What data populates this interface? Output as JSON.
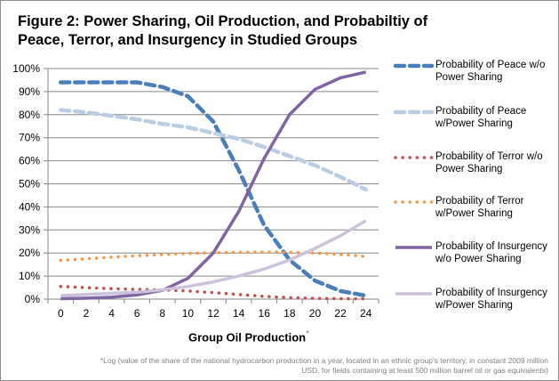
{
  "chart_data": {
    "type": "line",
    "title": "Figure 2: Power Sharing, Oil Production, and Probabiltiy of Peace, Terror, and Insurgency in Studied Groups",
    "title_lines": [
      "Figure 2: Power Sharing, Oil Production, and Probabiltiy of",
      "Peace, Terror, and Insurgency in Studied Groups"
    ],
    "xlabel": "Group Oil Production",
    "xlabel_marker": "*",
    "ylabel": "",
    "x": [
      0,
      2,
      4,
      6,
      8,
      10,
      12,
      14,
      16,
      18,
      20,
      22,
      24
    ],
    "x_tick_labels": [
      "0",
      "2",
      "4",
      "6",
      "8",
      "10",
      "12",
      "14",
      "16",
      "18",
      "20",
      "22",
      "24"
    ],
    "ylim": [
      0,
      100
    ],
    "y_tick_labels": [
      "0%",
      "10%",
      "20%",
      "30%",
      "40%",
      "50%",
      "60%",
      "70%",
      "80%",
      "90%",
      "100%"
    ],
    "grid": "horizontal",
    "legend_position": "right",
    "series": [
      {
        "name": "Probability of Peace w/o Power Sharing",
        "label_lines": [
          "Probability of Peace w/o",
          "Power Sharing"
        ],
        "color": "#4a7ebb",
        "style": "dash",
        "values": [
          94,
          94,
          94,
          94,
          92,
          88,
          77,
          56,
          32,
          17,
          8,
          3.5,
          1.5
        ]
      },
      {
        "name": "Probability of Peace w/Power Sharing",
        "label_lines": [
          "Probability of Peace",
          "w/Power Sharing"
        ],
        "color": "#b9cde5",
        "style": "dash",
        "values": [
          82,
          81,
          79.5,
          78,
          76,
          74.5,
          72,
          69.5,
          66,
          62,
          58,
          53,
          47.5
        ]
      },
      {
        "name": "Probability of Terror w/o Power Sharing",
        "label_lines": [
          "Probability of Terror w/o",
          "Power Sharing"
        ],
        "color": "#c0504d",
        "style": "dot",
        "values": [
          5.5,
          5,
          4.5,
          4.2,
          4,
          3.5,
          2.8,
          2,
          1.2,
          0.6,
          0.3,
          0.2,
          0.1
        ]
      },
      {
        "name": "Probability of Terror w/Power Sharing",
        "label_lines": [
          "Probability of Terror",
          "w/Power Sharing"
        ],
        "color": "#f79646",
        "style": "dot",
        "values": [
          16.8,
          17.5,
          18.2,
          18.8,
          19.3,
          19.8,
          20.1,
          20.3,
          20.4,
          20.3,
          20,
          19.4,
          18.5
        ]
      },
      {
        "name": "Probability of Insurgency w/o Power Sharing",
        "label_lines": [
          "Probability of Insurgency",
          "w/o Power Sharing"
        ],
        "color": "#8064a2",
        "style": "solid",
        "values": [
          0.2,
          0.4,
          0.8,
          1.8,
          3.8,
          9,
          20,
          38,
          61,
          80,
          91,
          96,
          98.5
        ]
      },
      {
        "name": "Probability of Insurgency w/Power Sharing",
        "label_lines": [
          "Probability of Insurgency",
          "w/Power Sharing"
        ],
        "color": "#ccc1da",
        "style": "solid",
        "values": [
          1.5,
          2,
          2.5,
          3,
          4,
          5.5,
          7.5,
          10,
          13,
          17,
          22,
          27.5,
          34
        ]
      }
    ],
    "footnote_lines": [
      "*Log (value of the share of the national hydrocarbon production  in a year, located in an ethnic group's territory, in constant 2009 million",
      "USD, for fields containing at least 500 million barrel oil or gas equivalents)"
    ]
  }
}
